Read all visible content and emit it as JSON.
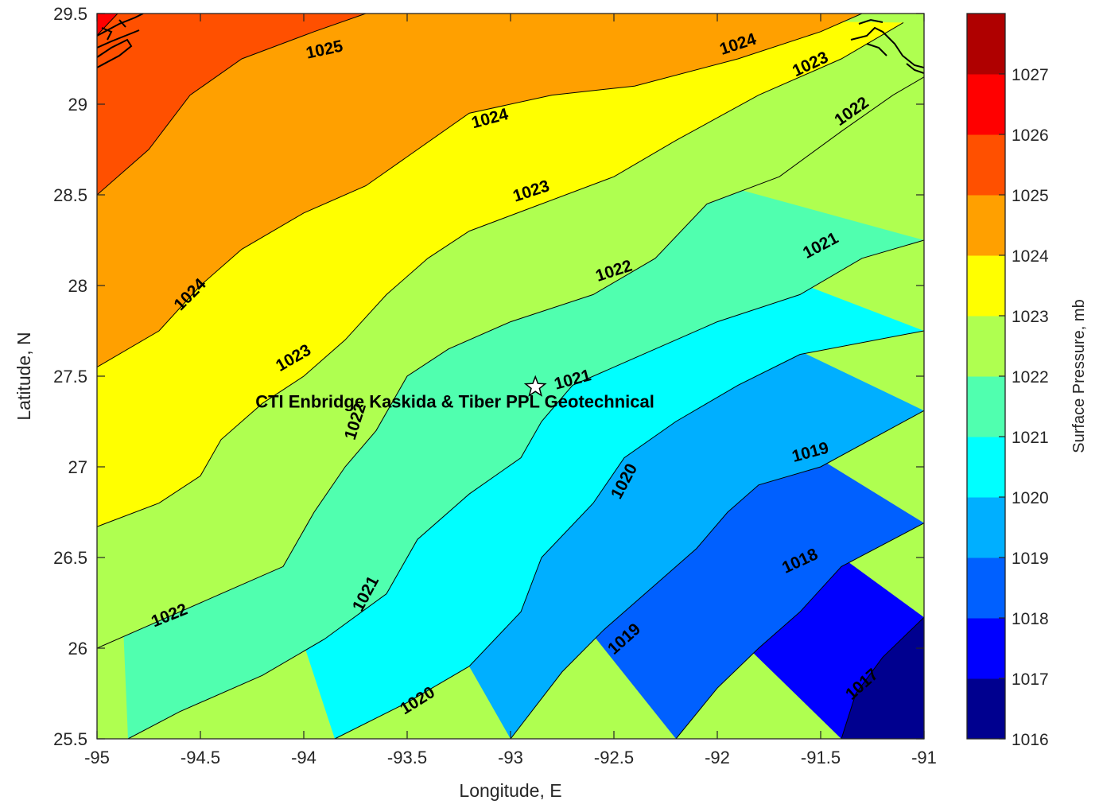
{
  "chart_data": {
    "type": "contour",
    "title": "",
    "xlabel": "Longitude, E",
    "ylabel": "Latitude, N",
    "xlim": [
      -95,
      -91
    ],
    "ylim": [
      25.5,
      29.5
    ],
    "xticks": [
      -95,
      -94.5,
      -94,
      -93.5,
      -93,
      -92.5,
      -92,
      -91.5,
      -91
    ],
    "xtick_labels": [
      "-95",
      "-94.5",
      "-94",
      "-93.5",
      "-93",
      "-92.5",
      "-92",
      "-91.5",
      "-91"
    ],
    "yticks": [
      25.5,
      26,
      26.5,
      27,
      27.5,
      28,
      28.5,
      29,
      29.5
    ],
    "ytick_labels": [
      "25.5",
      "26",
      "26.5",
      "27",
      "27.5",
      "28",
      "28.5",
      "29",
      "29.5"
    ],
    "contour_levels": [
      1017,
      1018,
      1019,
      1020,
      1021,
      1022,
      1023,
      1024,
      1025,
      1026
    ],
    "contour_lines": [
      {
        "level": 1017,
        "points": [
          [
            -91.4,
            25.5
          ],
          [
            -91.33,
            25.75
          ],
          [
            -91.2,
            25.95
          ],
          [
            -91.0,
            26.17
          ]
        ]
      },
      {
        "level": 1018,
        "points": [
          [
            -92.2,
            25.5
          ],
          [
            -92.0,
            25.78
          ],
          [
            -91.8,
            26.0
          ],
          [
            -91.6,
            26.2
          ],
          [
            -91.4,
            26.45
          ],
          [
            -91.0,
            26.69
          ]
        ]
      },
      {
        "level": 1019,
        "points": [
          [
            -93.0,
            25.5
          ],
          [
            -92.75,
            25.87
          ],
          [
            -92.55,
            26.1
          ],
          [
            -92.3,
            26.35
          ],
          [
            -92.1,
            26.55
          ],
          [
            -91.95,
            26.75
          ],
          [
            -91.8,
            26.9
          ],
          [
            -91.5,
            27.0
          ],
          [
            -91.0,
            27.31
          ]
        ]
      },
      {
        "level": 1020,
        "points": [
          [
            -93.85,
            25.5
          ],
          [
            -93.5,
            25.7
          ],
          [
            -93.2,
            25.9
          ],
          [
            -92.95,
            26.2
          ],
          [
            -92.85,
            26.5
          ],
          [
            -92.6,
            26.8
          ],
          [
            -92.45,
            27.05
          ],
          [
            -92.2,
            27.25
          ],
          [
            -91.9,
            27.45
          ],
          [
            -91.6,
            27.62
          ],
          [
            -91.0,
            27.75
          ]
        ]
      },
      {
        "level": 1021,
        "points": [
          [
            -94.85,
            25.5
          ],
          [
            -94.6,
            25.65
          ],
          [
            -94.2,
            25.85
          ],
          [
            -93.9,
            26.05
          ],
          [
            -93.6,
            26.3
          ],
          [
            -93.45,
            26.6
          ],
          [
            -93.2,
            26.85
          ],
          [
            -92.95,
            27.05
          ],
          [
            -92.85,
            27.25
          ],
          [
            -92.7,
            27.45
          ],
          [
            -92.4,
            27.6
          ],
          [
            -92.0,
            27.8
          ],
          [
            -91.6,
            27.95
          ],
          [
            -91.3,
            28.15
          ],
          [
            -91.0,
            28.25
          ]
        ]
      },
      {
        "level": 1022,
        "points": [
          [
            -95.0,
            26.0
          ],
          [
            -94.7,
            26.15
          ],
          [
            -94.4,
            26.3
          ],
          [
            -94.1,
            26.45
          ],
          [
            -93.95,
            26.75
          ],
          [
            -93.8,
            27.0
          ],
          [
            -93.65,
            27.2
          ],
          [
            -93.5,
            27.5
          ],
          [
            -93.3,
            27.65
          ],
          [
            -93.0,
            27.8
          ],
          [
            -92.6,
            27.95
          ],
          [
            -92.3,
            28.15
          ],
          [
            -92.05,
            28.45
          ],
          [
            -91.7,
            28.6
          ],
          [
            -91.4,
            28.85
          ],
          [
            -91.15,
            29.05
          ],
          [
            -91.0,
            29.15
          ]
        ]
      },
      {
        "level": 1023,
        "points": [
          [
            -95.0,
            26.67
          ],
          [
            -94.7,
            26.8
          ],
          [
            -94.5,
            26.95
          ],
          [
            -94.4,
            27.15
          ],
          [
            -94.2,
            27.35
          ],
          [
            -94.0,
            27.5
          ],
          [
            -93.8,
            27.7
          ],
          [
            -93.6,
            27.95
          ],
          [
            -93.4,
            28.15
          ],
          [
            -93.2,
            28.3
          ],
          [
            -92.85,
            28.45
          ],
          [
            -92.5,
            28.6
          ],
          [
            -92.2,
            28.8
          ],
          [
            -91.8,
            29.05
          ],
          [
            -91.4,
            29.25
          ],
          [
            -91.1,
            29.45
          ]
        ]
      },
      {
        "level": 1024,
        "points": [
          [
            -95.0,
            27.55
          ],
          [
            -94.7,
            27.75
          ],
          [
            -94.5,
            28.0
          ],
          [
            -94.3,
            28.2
          ],
          [
            -94.0,
            28.4
          ],
          [
            -93.7,
            28.55
          ],
          [
            -93.45,
            28.75
          ],
          [
            -93.2,
            28.95
          ],
          [
            -92.8,
            29.05
          ],
          [
            -92.4,
            29.1
          ],
          [
            -91.9,
            29.25
          ],
          [
            -91.5,
            29.4
          ],
          [
            -91.3,
            29.5
          ]
        ]
      },
      {
        "level": 1025,
        "points": [
          [
            -95.0,
            28.5
          ],
          [
            -94.75,
            28.75
          ],
          [
            -94.55,
            29.05
          ],
          [
            -94.3,
            29.25
          ],
          [
            -93.95,
            29.4
          ],
          [
            -93.7,
            29.5
          ]
        ]
      },
      {
        "level": 1026,
        "points": [
          [
            -95.0,
            29.38
          ],
          [
            -94.9,
            29.5
          ]
        ]
      }
    ],
    "contour_labels": [
      {
        "text": "1025",
        "x": -93.9,
        "y": 29.3,
        "angle": -12
      },
      {
        "text": "1024",
        "x": -91.9,
        "y": 29.33,
        "angle": -18
      },
      {
        "text": "1023",
        "x": -91.55,
        "y": 29.22,
        "angle": -25
      },
      {
        "text": "1022",
        "x": -91.35,
        "y": 28.96,
        "angle": -35
      },
      {
        "text": "1024",
        "x": -93.1,
        "y": 28.92,
        "angle": -15
      },
      {
        "text": "1023",
        "x": -92.9,
        "y": 28.52,
        "angle": -18
      },
      {
        "text": "1024",
        "x": -94.55,
        "y": 27.95,
        "angle": -45
      },
      {
        "text": "1022",
        "x": -92.5,
        "y": 28.08,
        "angle": -18
      },
      {
        "text": "1021",
        "x": -91.5,
        "y": 28.22,
        "angle": -28
      },
      {
        "text": "1023",
        "x": -94.05,
        "y": 27.6,
        "angle": -30
      },
      {
        "text": "1021",
        "x": -92.7,
        "y": 27.48,
        "angle": -15
      },
      {
        "text": "1022",
        "x": -93.75,
        "y": 27.25,
        "angle": -72
      },
      {
        "text": "1020",
        "x": -92.45,
        "y": 26.92,
        "angle": -62
      },
      {
        "text": "1019",
        "x": -91.55,
        "y": 27.08,
        "angle": -15
      },
      {
        "text": "1021",
        "x": -93.7,
        "y": 26.3,
        "angle": -62
      },
      {
        "text": "1022",
        "x": -94.65,
        "y": 26.18,
        "angle": -22
      },
      {
        "text": "1018",
        "x": -91.6,
        "y": 26.48,
        "angle": -25
      },
      {
        "text": "1019",
        "x": -92.45,
        "y": 26.05,
        "angle": -42
      },
      {
        "text": "1017",
        "x": -91.3,
        "y": 25.8,
        "angle": -42
      },
      {
        "text": "1020",
        "x": -93.45,
        "y": 25.71,
        "angle": -32
      }
    ],
    "marker": {
      "label": "CTI Enbridge  Kaskida & Tiber PPL Geotechnical",
      "x": -92.88,
      "y": 27.44,
      "symbol": "star"
    },
    "colorbar": {
      "label": "Surface Pressure, mb",
      "min": 1016,
      "max": 1027,
      "ticks": [
        "1016",
        "1017",
        "1018",
        "1019",
        "1020",
        "1021",
        "1022",
        "1023",
        "1024",
        "1025",
        "1026",
        "1027"
      ],
      "colors": [
        "#00008f",
        "#0000ff",
        "#0060ff",
        "#00afff",
        "#00ffff",
        "#50ffaf",
        "#afff50",
        "#ffff00",
        "#ffa000",
        "#ff5000",
        "#ff0000",
        "#af0000"
      ]
    },
    "grid": false
  }
}
